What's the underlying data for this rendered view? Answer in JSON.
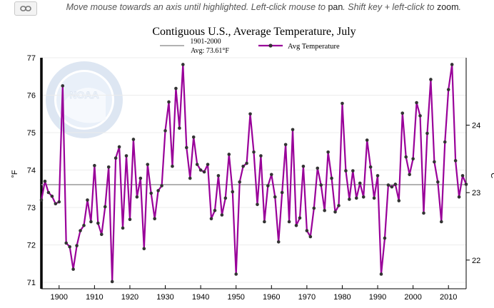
{
  "toolbar": {
    "hint_part1": "Move mouse towards an axis until highlighted. Left-click mouse to ",
    "hint_pan": "pan",
    "hint_part2": ". Shift key + left-click to ",
    "hint_zoom": "zoom",
    "hint_part3": "."
  },
  "watermark": {
    "logo_text": "NOAA"
  },
  "colors": {
    "series": "#990099",
    "baseline": "#999999",
    "marker": "#333333"
  },
  "chart_data": {
    "type": "line",
    "title": "Contiguous U.S., Average Temperature, July",
    "ylabel": "°F",
    "y2label": "°C",
    "xlim": [
      1895,
      2015
    ],
    "ylim": [
      71,
      77
    ],
    "y2lim": [
      21.67,
      25.0
    ],
    "x_ticks": [
      1900,
      1910,
      1920,
      1930,
      1940,
      1950,
      1960,
      1970,
      1980,
      1990,
      2000,
      2010
    ],
    "y_ticks": [
      71,
      72,
      73,
      74,
      75,
      76,
      77
    ],
    "y2_ticks": [
      22,
      23,
      24
    ],
    "grid": true,
    "legend_position": "top-center",
    "baseline": {
      "name_line1": "1901-2000",
      "name_line2": "Avg: 73.61°F",
      "value": 73.61
    },
    "series": [
      {
        "name": "Avg Temperature",
        "x": [
          1895,
          1896,
          1897,
          1898,
          1899,
          1900,
          1901,
          1902,
          1903,
          1904,
          1905,
          1906,
          1907,
          1908,
          1909,
          1910,
          1911,
          1912,
          1913,
          1914,
          1915,
          1916,
          1917,
          1918,
          1919,
          1920,
          1921,
          1922,
          1923,
          1924,
          1925,
          1926,
          1927,
          1928,
          1929,
          1930,
          1931,
          1932,
          1933,
          1934,
          1935,
          1936,
          1937,
          1938,
          1939,
          1940,
          1941,
          1942,
          1943,
          1944,
          1945,
          1946,
          1947,
          1948,
          1949,
          1950,
          1951,
          1952,
          1953,
          1954,
          1955,
          1956,
          1957,
          1958,
          1959,
          1960,
          1961,
          1962,
          1963,
          1964,
          1965,
          1966,
          1967,
          1968,
          1969,
          1970,
          1971,
          1972,
          1973,
          1974,
          1975,
          1976,
          1977,
          1978,
          1979,
          1980,
          1981,
          1982,
          1983,
          1984,
          1985,
          1986,
          1987,
          1988,
          1989,
          1990,
          1991,
          1992,
          1993,
          1994,
          1995,
          1996,
          1997,
          1998,
          1999,
          2000,
          2001,
          2002,
          2003,
          2004,
          2005,
          2006,
          2007,
          2008,
          2009,
          2010,
          2011,
          2012,
          2013,
          2014,
          2015
        ],
        "values": [
          73.2,
          73.7,
          73.4,
          73.3,
          73.1,
          73.15,
          76.25,
          72.05,
          71.95,
          71.35,
          71.98,
          72.38,
          72.52,
          73.2,
          72.62,
          74.12,
          72.58,
          72.28,
          73.02,
          74.08,
          71.02,
          74.32,
          74.62,
          72.45,
          74.38,
          72.68,
          74.82,
          73.28,
          73.78,
          71.9,
          74.15,
          73.38,
          72.7,
          73.45,
          73.58,
          75.05,
          75.82,
          74.1,
          76.18,
          75.12,
          76.82,
          74.6,
          73.78,
          74.88,
          74.15,
          74.0,
          73.95,
          74.15,
          72.7,
          72.92,
          73.85,
          72.8,
          73.25,
          74.42,
          73.42,
          71.22,
          73.68,
          74.1,
          74.18,
          75.5,
          74.48,
          73.08,
          74.38,
          72.62,
          73.58,
          73.88,
          73.28,
          72.08,
          73.4,
          74.68,
          72.62,
          75.08,
          72.52,
          72.72,
          74.1,
          72.38,
          72.22,
          72.98,
          74.05,
          73.6,
          72.92,
          74.48,
          73.78,
          72.88,
          73.05,
          75.78,
          73.98,
          73.22,
          73.98,
          73.25,
          73.65,
          73.28,
          74.8,
          74.08,
          73.25,
          73.85,
          71.22,
          72.18,
          73.6,
          73.55,
          73.62,
          73.18,
          75.52,
          74.35,
          73.88,
          74.3,
          75.8,
          75.45,
          72.85,
          74.98,
          76.42,
          74.22,
          73.68,
          72.62,
          74.75,
          76.15,
          76.82,
          74.25,
          73.28,
          73.85,
          73.62
        ]
      }
    ]
  }
}
